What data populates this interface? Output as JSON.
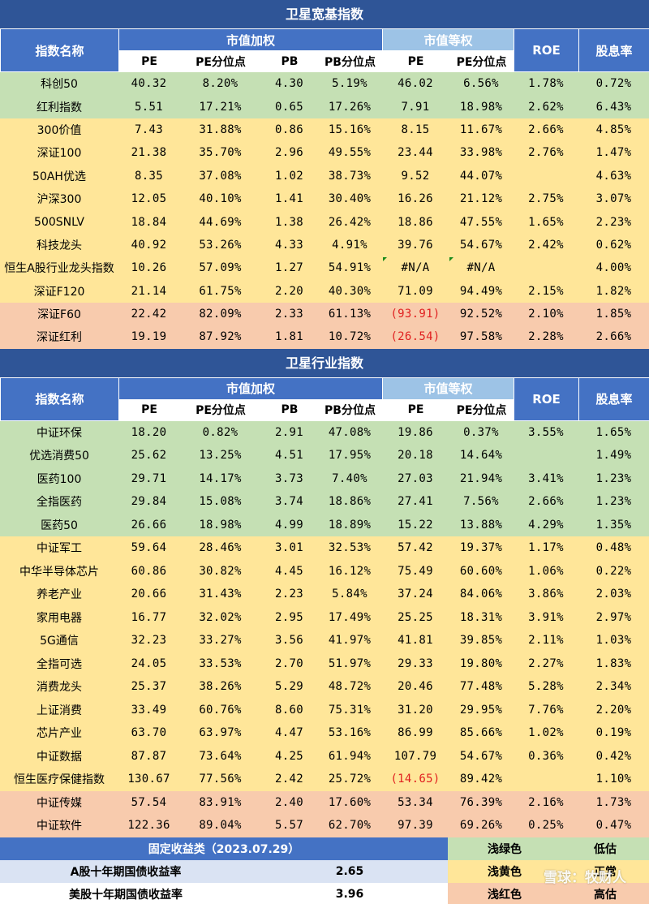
{
  "broad": {
    "title": "卫星宽基指数",
    "headers": {
      "name": "指数名称",
      "cap_weighted": "市值加权",
      "equal_weighted": "市值等权",
      "roe": "ROE",
      "div": "股息率",
      "pe": "PE",
      "pe_pct": "PE分位点",
      "pb": "PB",
      "pb_pct": "PB分位点",
      "pe2": "PE",
      "pe2_pct": "PE分位点"
    },
    "rows": [
      {
        "color": "green",
        "name": "科创50",
        "pe": "40.32",
        "pe_pct": "8.20%",
        "pb": "4.30",
        "pb_pct": "5.19%",
        "pe2": "46.02",
        "pe2_pct": "6.56%",
        "roe": "1.78%",
        "div": "0.72%"
      },
      {
        "color": "green",
        "name": "红利指数",
        "pe": "5.51",
        "pe_pct": "17.21%",
        "pb": "0.65",
        "pb_pct": "17.26%",
        "pe2": "7.91",
        "pe2_pct": "18.98%",
        "roe": "2.62%",
        "div": "6.43%"
      },
      {
        "color": "yellow",
        "name": "300价值",
        "pe": "7.43",
        "pe_pct": "31.88%",
        "pb": "0.86",
        "pb_pct": "15.16%",
        "pe2": "8.15",
        "pe2_pct": "11.67%",
        "roe": "2.66%",
        "div": "4.85%"
      },
      {
        "color": "yellow",
        "name": "深证100",
        "pe": "21.38",
        "pe_pct": "35.70%",
        "pb": "2.96",
        "pb_pct": "49.55%",
        "pe2": "23.44",
        "pe2_pct": "33.98%",
        "roe": "2.76%",
        "div": "1.47%"
      },
      {
        "color": "yellow",
        "name": "50AH优选",
        "pe": "8.35",
        "pe_pct": "37.08%",
        "pb": "1.02",
        "pb_pct": "38.73%",
        "pe2": "9.52",
        "pe2_pct": "44.07%",
        "roe": "",
        "div": "4.63%"
      },
      {
        "color": "yellow",
        "name": "沪深300",
        "pe": "12.05",
        "pe_pct": "40.10%",
        "pb": "1.41",
        "pb_pct": "30.40%",
        "pe2": "16.26",
        "pe2_pct": "21.12%",
        "roe": "2.75%",
        "div": "3.07%"
      },
      {
        "color": "yellow",
        "name": "500SNLV",
        "pe": "18.84",
        "pe_pct": "44.69%",
        "pb": "1.38",
        "pb_pct": "26.42%",
        "pe2": "18.86",
        "pe2_pct": "47.55%",
        "roe": "1.65%",
        "div": "2.23%"
      },
      {
        "color": "yellow",
        "name": "科技龙头",
        "pe": "40.92",
        "pe_pct": "53.26%",
        "pb": "4.33",
        "pb_pct": "4.91%",
        "pe2": "39.76",
        "pe2_pct": "54.67%",
        "roe": "2.42%",
        "div": "0.62%"
      },
      {
        "color": "yellow",
        "name": "恒生A股行业龙头指数",
        "pe": "10.26",
        "pe_pct": "57.09%",
        "pb": "1.27",
        "pb_pct": "54.91%",
        "pe2": "#N/A",
        "pe2_pct": "#N/A",
        "roe": "",
        "div": "4.00%"
      },
      {
        "color": "yellow",
        "name": "深证F120",
        "pe": "21.14",
        "pe_pct": "61.75%",
        "pb": "2.20",
        "pb_pct": "40.30%",
        "pe2": "71.09",
        "pe2_pct": "94.49%",
        "roe": "2.15%",
        "div": "1.82%"
      },
      {
        "color": "pink",
        "name": "深证F60",
        "pe": "22.42",
        "pe_pct": "82.09%",
        "pb": "2.33",
        "pb_pct": "61.13%",
        "pe2": "(93.91)",
        "pe2_pct": "92.52%",
        "roe": "2.10%",
        "div": "1.85%"
      },
      {
        "color": "pink",
        "name": "深证红利",
        "pe": "19.19",
        "pe_pct": "87.92%",
        "pb": "1.81",
        "pb_pct": "10.72%",
        "pe2": "(26.54)",
        "pe2_pct": "97.58%",
        "roe": "2.28%",
        "div": "2.66%"
      }
    ]
  },
  "industry": {
    "title": "卫星行业指数",
    "headers": {
      "name": "指数名称",
      "cap_weighted": "市值加权",
      "equal_weighted": "市值等权",
      "roe": "ROE",
      "div": "股息率",
      "pe": "PE",
      "pe_pct": "PE分位点",
      "pb": "PB",
      "pb_pct": "PB分位点",
      "pe2": "PE",
      "pe2_pct": "PE分位点"
    },
    "rows": [
      {
        "color": "green",
        "name": "中证环保",
        "pe": "18.20",
        "pe_pct": "0.82%",
        "pb": "2.91",
        "pb_pct": "47.08%",
        "pe2": "19.86",
        "pe2_pct": "0.37%",
        "roe": "3.55%",
        "div": "1.65%"
      },
      {
        "color": "green",
        "name": "优选消费50",
        "pe": "25.62",
        "pe_pct": "13.25%",
        "pb": "4.51",
        "pb_pct": "17.95%",
        "pe2": "20.18",
        "pe2_pct": "14.64%",
        "roe": "",
        "div": "1.49%"
      },
      {
        "color": "green",
        "name": "医药100",
        "pe": "29.71",
        "pe_pct": "14.17%",
        "pb": "3.73",
        "pb_pct": "7.40%",
        "pe2": "27.03",
        "pe2_pct": "21.94%",
        "roe": "3.41%",
        "div": "1.23%"
      },
      {
        "color": "green",
        "name": "全指医药",
        "pe": "29.84",
        "pe_pct": "15.08%",
        "pb": "3.74",
        "pb_pct": "18.86%",
        "pe2": "27.41",
        "pe2_pct": "7.56%",
        "roe": "2.66%",
        "div": "1.23%"
      },
      {
        "color": "green",
        "name": "医药50",
        "pe": "26.66",
        "pe_pct": "18.98%",
        "pb": "4.99",
        "pb_pct": "18.89%",
        "pe2": "15.22",
        "pe2_pct": "13.88%",
        "roe": "4.29%",
        "div": "1.35%"
      },
      {
        "color": "yellow",
        "name": "中证军工",
        "pe": "59.64",
        "pe_pct": "28.46%",
        "pb": "3.01",
        "pb_pct": "32.53%",
        "pe2": "57.42",
        "pe2_pct": "19.37%",
        "roe": "1.17%",
        "div": "0.48%"
      },
      {
        "color": "yellow",
        "name": "中华半导体芯片",
        "pe": "60.86",
        "pe_pct": "30.82%",
        "pb": "4.45",
        "pb_pct": "16.12%",
        "pe2": "75.49",
        "pe2_pct": "60.60%",
        "roe": "1.06%",
        "div": "0.22%"
      },
      {
        "color": "yellow",
        "name": "养老产业",
        "pe": "20.66",
        "pe_pct": "31.43%",
        "pb": "2.23",
        "pb_pct": "5.84%",
        "pe2": "37.24",
        "pe2_pct": "84.06%",
        "roe": "3.86%",
        "div": "2.03%"
      },
      {
        "color": "yellow",
        "name": "家用电器",
        "pe": "16.77",
        "pe_pct": "32.02%",
        "pb": "2.95",
        "pb_pct": "17.49%",
        "pe2": "25.25",
        "pe2_pct": "18.31%",
        "roe": "3.91%",
        "div": "2.97%"
      },
      {
        "color": "yellow",
        "name": "5G通信",
        "pe": "32.23",
        "pe_pct": "33.27%",
        "pb": "3.56",
        "pb_pct": "41.97%",
        "pe2": "41.81",
        "pe2_pct": "39.85%",
        "roe": "2.11%",
        "div": "1.03%"
      },
      {
        "color": "yellow",
        "name": "全指可选",
        "pe": "24.05",
        "pe_pct": "33.53%",
        "pb": "2.70",
        "pb_pct": "51.97%",
        "pe2": "29.33",
        "pe2_pct": "19.80%",
        "roe": "2.27%",
        "div": "1.83%"
      },
      {
        "color": "yellow",
        "name": "消费龙头",
        "pe": "25.37",
        "pe_pct": "38.26%",
        "pb": "5.29",
        "pb_pct": "48.72%",
        "pe2": "20.46",
        "pe2_pct": "77.48%",
        "roe": "5.28%",
        "div": "2.34%"
      },
      {
        "color": "yellow",
        "name": "上证消费",
        "pe": "33.49",
        "pe_pct": "60.76%",
        "pb": "8.60",
        "pb_pct": "75.31%",
        "pe2": "31.20",
        "pe2_pct": "29.95%",
        "roe": "7.76%",
        "div": "2.20%"
      },
      {
        "color": "yellow",
        "name": "芯片产业",
        "pe": "63.70",
        "pe_pct": "63.97%",
        "pb": "4.47",
        "pb_pct": "53.16%",
        "pe2": "86.99",
        "pe2_pct": "85.66%",
        "roe": "1.02%",
        "div": "0.19%"
      },
      {
        "color": "yellow",
        "name": "中证数据",
        "pe": "87.87",
        "pe_pct": "73.64%",
        "pb": "4.25",
        "pb_pct": "61.94%",
        "pe2": "107.79",
        "pe2_pct": "54.67%",
        "roe": "0.36%",
        "div": "0.42%"
      },
      {
        "color": "yellow",
        "name": "恒生医疗保健指数",
        "pe": "130.67",
        "pe_pct": "77.56%",
        "pb": "2.42",
        "pb_pct": "25.72%",
        "pe2": "(14.65)",
        "pe2_pct": "89.42%",
        "roe": "",
        "div": "1.10%"
      },
      {
        "color": "pink",
        "name": "中证传媒",
        "pe": "57.54",
        "pe_pct": "83.91%",
        "pb": "2.40",
        "pb_pct": "17.60%",
        "pe2": "53.34",
        "pe2_pct": "76.39%",
        "roe": "2.16%",
        "div": "1.73%"
      },
      {
        "color": "pink",
        "name": "中证软件",
        "pe": "122.36",
        "pe_pct": "89.04%",
        "pb": "5.57",
        "pb_pct": "62.70%",
        "pe2": "97.39",
        "pe2_pct": "69.26%",
        "roe": "0.25%",
        "div": "0.47%"
      }
    ]
  },
  "fixed_income": {
    "title": "固定收益类（2023.07.29）",
    "rows": [
      {
        "label": "A股十年期国债收益率",
        "value": "2.65"
      },
      {
        "label": "美股十年期国债收益率",
        "value": "3.96"
      }
    ]
  },
  "legend": [
    {
      "color_name": "浅绿色",
      "meaning": "低估",
      "hex": "#c5e0b4"
    },
    {
      "color_name": "浅黄色",
      "meaning": "正常",
      "hex": "#ffe699"
    },
    {
      "color_name": "浅红色",
      "meaning": "高估",
      "hex": "#f8cbad"
    }
  ],
  "watermark": "雪球：牧财人"
}
